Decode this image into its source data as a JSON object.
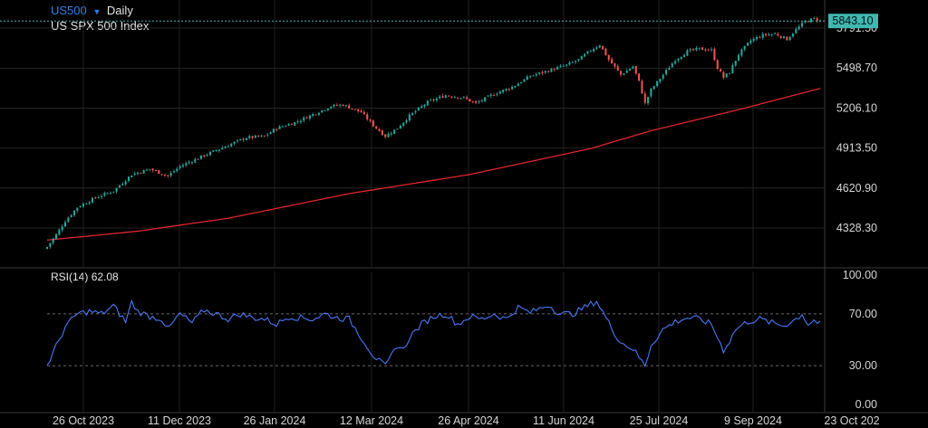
{
  "header": {
    "symbol": "US500",
    "dropdown_icon": "caret-down-icon",
    "timeframe": "Daily",
    "instrument_name": "US SPX 500 Index"
  },
  "price_panel": {
    "last_price_label": "5843.10",
    "partial_label": "5791.50",
    "colors": {
      "up": "#26a69a",
      "down": "#ef5350",
      "ma": "#e0262b",
      "last_price_bg": "#3fb8b0",
      "grid": "#2a2a2a"
    }
  },
  "rsi_panel": {
    "title": "RSI(14)",
    "value": "62.08",
    "color": "#4a78f5"
  },
  "chart_data": [
    {
      "type": "candlestick",
      "title": "US500 Daily",
      "subtitle": "US SPX 500 Index",
      "y_tick_labels": [
        "5791.50",
        "5498.70",
        "5206.10",
        "4913.50",
        "4620.90",
        "4328.30"
      ],
      "ylim": [
        4230,
        5905
      ],
      "x_tick_labels": [
        "26 Oct 2023",
        "11 Dec 2023",
        "26 Jan 2024",
        "12 Mar 2024",
        "26 Apr 2024",
        "11 Jun 2024",
        "25 Jul 2024",
        "9 Sep 2024",
        "23 Oct 202"
      ],
      "last_price": 5843.1,
      "anchors": [
        [
          0,
          4190
        ],
        [
          3,
          4280
        ],
        [
          6,
          4380
        ],
        [
          10,
          4480
        ],
        [
          16,
          4550
        ],
        [
          22,
          4600
        ],
        [
          28,
          4720
        ],
        [
          34,
          4760
        ],
        [
          40,
          4710
        ],
        [
          44,
          4780
        ],
        [
          52,
          4860
        ],
        [
          60,
          4935
        ],
        [
          66,
          4990
        ],
        [
          72,
          5000
        ],
        [
          76,
          5060
        ],
        [
          82,
          5100
        ],
        [
          88,
          5160
        ],
        [
          94,
          5220
        ],
        [
          98,
          5230
        ],
        [
          104,
          5175
        ],
        [
          108,
          5080
        ],
        [
          112,
          5000
        ],
        [
          116,
          5060
        ],
        [
          120,
          5150
        ],
        [
          126,
          5250
        ],
        [
          132,
          5300
        ],
        [
          138,
          5280
        ],
        [
          142,
          5240
        ],
        [
          148,
          5310
        ],
        [
          154,
          5360
        ],
        [
          160,
          5440
        ],
        [
          166,
          5480
        ],
        [
          172,
          5520
        ],
        [
          176,
          5560
        ],
        [
          180,
          5630
        ],
        [
          183,
          5670
        ],
        [
          186,
          5560
        ],
        [
          190,
          5450
        ],
        [
          194,
          5510
        ],
        [
          196,
          5400
        ],
        [
          198,
          5240
        ],
        [
          200,
          5340
        ],
        [
          204,
          5450
        ],
        [
          208,
          5560
        ],
        [
          212,
          5620
        ],
        [
          216,
          5640
        ],
        [
          220,
          5630
        ],
        [
          222,
          5500
        ],
        [
          224,
          5430
        ],
        [
          226,
          5470
        ],
        [
          229,
          5600
        ],
        [
          233,
          5700
        ],
        [
          237,
          5740
        ],
        [
          241,
          5750
        ],
        [
          245,
          5710
        ],
        [
          248,
          5780
        ],
        [
          251,
          5840
        ],
        [
          254,
          5860
        ],
        [
          256,
          5843
        ]
      ],
      "ma_anchors": [
        [
          0,
          4240
        ],
        [
          30,
          4305
        ],
        [
          60,
          4400
        ],
        [
          100,
          4580
        ],
        [
          140,
          4720
        ],
        [
          180,
          4910
        ],
        [
          200,
          5040
        ],
        [
          230,
          5200
        ],
        [
          256,
          5350
        ]
      ]
    },
    {
      "type": "line",
      "title": "RSI(14) 62.08",
      "ylim": [
        0,
        100
      ],
      "y_tick_labels": [
        "100.00",
        "70.00",
        "30.00",
        "0.00"
      ],
      "levels": [
        70,
        30
      ],
      "anchors": [
        [
          0,
          30
        ],
        [
          3,
          45
        ],
        [
          6,
          60
        ],
        [
          10,
          70
        ],
        [
          14,
          72
        ],
        [
          18,
          70
        ],
        [
          22,
          76
        ],
        [
          26,
          64
        ],
        [
          28,
          79
        ],
        [
          30,
          72
        ],
        [
          34,
          68
        ],
        [
          38,
          66
        ],
        [
          40,
          58
        ],
        [
          44,
          70
        ],
        [
          48,
          63
        ],
        [
          52,
          73
        ],
        [
          56,
          70
        ],
        [
          60,
          66
        ],
        [
          64,
          70
        ],
        [
          68,
          67
        ],
        [
          72,
          66
        ],
        [
          76,
          62
        ],
        [
          80,
          68
        ],
        [
          84,
          67
        ],
        [
          88,
          66
        ],
        [
          92,
          70
        ],
        [
          96,
          67
        ],
        [
          100,
          66
        ],
        [
          104,
          52
        ],
        [
          108,
          38
        ],
        [
          112,
          29
        ],
        [
          116,
          46
        ],
        [
          118,
          42
        ],
        [
          120,
          52
        ],
        [
          124,
          62
        ],
        [
          128,
          68
        ],
        [
          132,
          70
        ],
        [
          136,
          62
        ],
        [
          140,
          68
        ],
        [
          144,
          66
        ],
        [
          148,
          70
        ],
        [
          152,
          66
        ],
        [
          156,
          75
        ],
        [
          160,
          71
        ],
        [
          166,
          77
        ],
        [
          170,
          70
        ],
        [
          174,
          70
        ],
        [
          178,
          75
        ],
        [
          182,
          80
        ],
        [
          186,
          63
        ],
        [
          188,
          55
        ],
        [
          190,
          48
        ],
        [
          194,
          43
        ],
        [
          198,
          30
        ],
        [
          200,
          46
        ],
        [
          204,
          58
        ],
        [
          208,
          64
        ],
        [
          212,
          67
        ],
        [
          216,
          66
        ],
        [
          220,
          62
        ],
        [
          224,
          42
        ],
        [
          226,
          49
        ],
        [
          228,
          58
        ],
        [
          232,
          64
        ],
        [
          236,
          66
        ],
        [
          240,
          63
        ],
        [
          244,
          61
        ],
        [
          248,
          66
        ],
        [
          250,
          70
        ],
        [
          252,
          62
        ],
        [
          254,
          65
        ],
        [
          256,
          62
        ]
      ]
    }
  ]
}
